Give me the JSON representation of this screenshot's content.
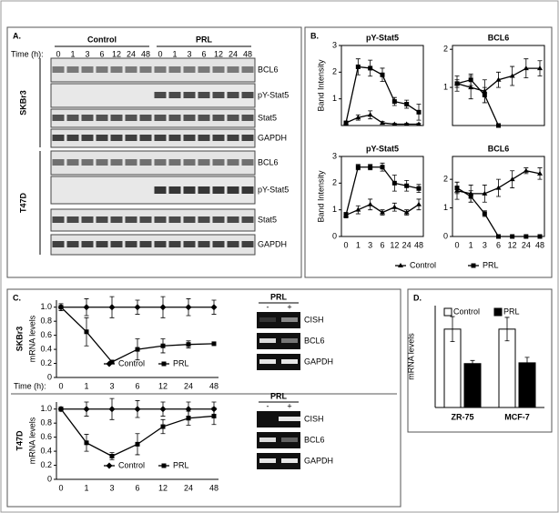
{
  "panel_labels": [
    "A.",
    "B.",
    "C.",
    "D."
  ],
  "blots": {
    "conditions": [
      "Control",
      "PRL"
    ],
    "time_label": "Time (h):",
    "times": [
      "0",
      "1",
      "3",
      "6",
      "12",
      "24",
      "48"
    ],
    "cell_lines": [
      {
        "name": "SKBr3",
        "bands": [
          "BCL6",
          "pY-Stat5",
          "Stat5",
          "GAPDH"
        ]
      },
      {
        "name": "T47D",
        "bands": [
          "BCL6",
          "pY-Stat5",
          "Stat5",
          "GAPDH"
        ]
      }
    ]
  },
  "chart_data": [
    {
      "type": "line",
      "title": "pY-Stat5",
      "y_label": "Band Intensity",
      "ylim": [
        0,
        3
      ],
      "yticks": [
        1,
        2,
        3
      ],
      "series": [
        {
          "name": "Control",
          "color": "#000000",
          "marker": "triangle",
          "values": [
            0.1,
            0.3,
            0.4,
            0.1,
            0.05,
            0.05,
            0.05
          ],
          "errors": [
            0.05,
            0.1,
            0.15,
            0.05,
            0.03,
            0.03,
            0.03
          ]
        },
        {
          "name": "PRL",
          "color": "#000000",
          "marker": "square",
          "values": [
            0.1,
            2.2,
            2.15,
            1.9,
            0.9,
            0.8,
            0.5
          ],
          "errors": [
            0.05,
            0.3,
            0.3,
            0.25,
            0.15,
            0.15,
            0.3
          ]
        }
      ]
    },
    {
      "type": "line",
      "title": "BCL6",
      "ylim": [
        0,
        2.1
      ],
      "yticks": [
        1,
        2
      ],
      "series": [
        {
          "color": "#000000",
          "marker": "triangle",
          "values": [
            1.1,
            1.0,
            0.9,
            1.2,
            1.3,
            1.5,
            1.5
          ],
          "errors": [
            0.2,
            0.3,
            0.3,
            0.2,
            0.25,
            0.25,
            0.2
          ]
        },
        {
          "color": "#000000",
          "marker": "square",
          "values": [
            1.1,
            1.2,
            0.8,
            0.0,
            null,
            null,
            null
          ],
          "errors": [
            0.1,
            0.15,
            0.2,
            0.0,
            null,
            null,
            null
          ]
        }
      ]
    },
    {
      "type": "line",
      "title": "pY-Stat5",
      "y_label": "Band Intensity",
      "categories": [
        "0",
        "1",
        "3",
        "6",
        "12",
        "24",
        "48"
      ],
      "ylim": [
        0,
        3
      ],
      "yticks": [
        0,
        1,
        2,
        3
      ],
      "series": [
        {
          "color": "#000000",
          "marker": "triangle",
          "values": [
            0.8,
            1.0,
            1.2,
            0.9,
            1.1,
            0.9,
            1.2
          ],
          "errors": [
            0.1,
            0.15,
            0.2,
            0.1,
            0.15,
            0.1,
            0.2
          ]
        },
        {
          "color": "#000000",
          "marker": "square",
          "values": [
            0.8,
            2.6,
            2.6,
            2.6,
            2.0,
            1.9,
            1.8
          ],
          "errors": [
            0.1,
            0.1,
            0.1,
            0.15,
            0.3,
            0.2,
            0.15
          ]
        }
      ]
    },
    {
      "type": "line",
      "title": "BCL6",
      "categories": [
        "0",
        "1",
        "3",
        "6",
        "12",
        "24",
        "48"
      ],
      "ylim": [
        0,
        2.8
      ],
      "yticks": [
        0,
        1,
        2
      ],
      "series": [
        {
          "color": "#000000",
          "marker": "triangle",
          "values": [
            1.6,
            1.5,
            1.5,
            1.7,
            2.0,
            2.3,
            2.2
          ],
          "errors": [
            0.3,
            0.3,
            0.3,
            0.3,
            0.3,
            0.1,
            0.2
          ]
        },
        {
          "color": "#000000",
          "marker": "square",
          "values": [
            1.7,
            1.4,
            0.8,
            0.0,
            0.0,
            0.0,
            0.0
          ],
          "errors": [
            0.2,
            0.2,
            0.1,
            0.0,
            0.0,
            0.0,
            0.0
          ]
        }
      ]
    },
    {
      "type": "line",
      "row_label": "SKBr3",
      "y_label": "mRNA levels",
      "time_label": "Time (h):",
      "categories": [
        "0",
        "1",
        "3",
        "6",
        "12",
        "24",
        "48"
      ],
      "ylim": [
        0,
        1.1
      ],
      "yticks": [
        0,
        0.2,
        0.4,
        0.6,
        0.8,
        {
          "value": 1,
          "label": "1.0"
        }
      ],
      "series": [
        {
          "name": "Control",
          "color": "#000000",
          "marker": "diamond",
          "values": [
            1.0,
            1.0,
            1.0,
            1.0,
            1.0,
            1.0,
            1.0
          ],
          "errors": [
            0.05,
            0.12,
            0.15,
            0.1,
            0.15,
            0.12,
            0.1
          ]
        },
        {
          "name": "PRL",
          "color": "#000000",
          "marker": "square",
          "values": [
            1.0,
            0.65,
            0.22,
            0.4,
            0.45,
            0.47,
            0.48
          ],
          "errors": [
            0.05,
            0.2,
            0.02,
            0.15,
            0.1,
            0.05,
            0.02
          ]
        }
      ]
    },
    {
      "type": "line",
      "row_label": "T47D",
      "y_label": "mRNA levels",
      "categories": [
        "0",
        "1",
        "3",
        "6",
        "12",
        "24",
        "48"
      ],
      "ylim": [
        0,
        1.1
      ],
      "yticks": [
        0,
        0.2,
        0.4,
        0.6,
        0.8,
        {
          "value": 1,
          "label": "1.0"
        }
      ],
      "series": [
        {
          "name": "Control",
          "color": "#000000",
          "marker": "diamond",
          "values": [
            1.0,
            1.0,
            1.0,
            1.0,
            1.0,
            1.0,
            1.0
          ],
          "errors": [
            0.03,
            0.1,
            0.15,
            0.12,
            0.1,
            0.1,
            0.1
          ]
        },
        {
          "name": "PRL",
          "color": "#000000",
          "marker": "square",
          "values": [
            1.0,
            0.52,
            0.33,
            0.5,
            0.75,
            0.87,
            0.9
          ],
          "errors": [
            0.03,
            0.12,
            0.05,
            0.15,
            0.1,
            0.1,
            0.12
          ]
        }
      ]
    },
    {
      "type": "bar",
      "y_label": "mRNA levels",
      "categories": [
        "ZR-75",
        "MCF-7"
      ],
      "ylim": [
        0,
        1.3
      ],
      "series": [
        {
          "name": "Control",
          "color": "#ffffff",
          "values": [
            1.0,
            1.0
          ],
          "errors": [
            0.16,
            0.15
          ]
        },
        {
          "name": "PRL",
          "color": "#000000",
          "values": [
            0.56,
            0.57
          ],
          "errors": [
            0.04,
            0.07
          ]
        }
      ]
    }
  ],
  "gels": [
    {
      "header": "PRL",
      "lanes": [
        "-",
        "+"
      ],
      "bands": [
        "CISH",
        "BCL6",
        "GAPDH"
      ]
    },
    {
      "header": "PRL",
      "lanes": [
        "-",
        "+"
      ],
      "bands": [
        "CISH",
        "BCL6",
        "GAPDH"
      ]
    }
  ]
}
